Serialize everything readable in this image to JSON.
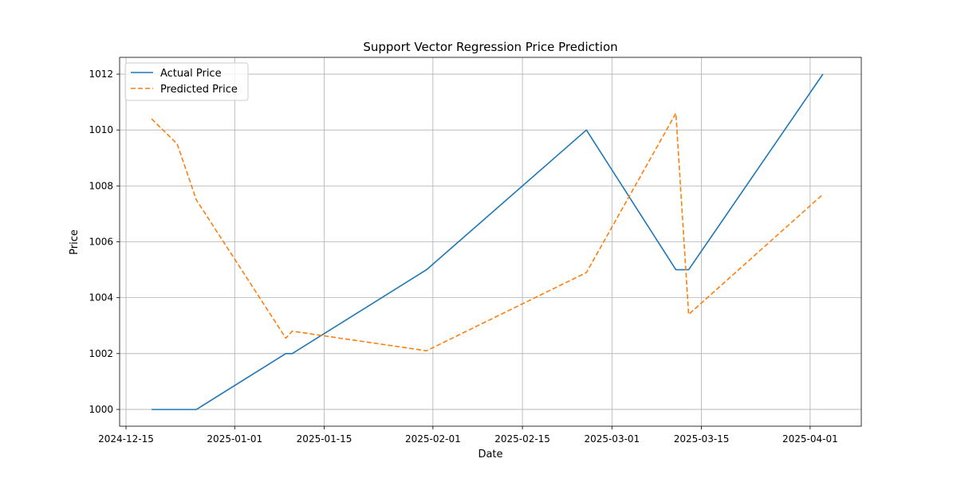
{
  "chart_data": {
    "type": "line",
    "title": "Support Vector Regression Price Prediction",
    "xlabel": "Date",
    "ylabel": "Price",
    "x_tick_labels": [
      "2024-12-15",
      "2025-01-01",
      "2025-01-15",
      "2025-02-01",
      "2025-02-15",
      "2025-03-01",
      "2025-03-15",
      "2025-04-01"
    ],
    "y_tick_labels": [
      "1000",
      "1002",
      "1004",
      "1006",
      "1008",
      "1010",
      "1012"
    ],
    "ylim": [
      999.4,
      1012.6
    ],
    "xlim": [
      "2024-12-14",
      "2025-04-09"
    ],
    "grid": true,
    "legend_position": "top-left",
    "series": [
      {
        "name": "Actual Price",
        "color": "#1f77b4",
        "linestyle": "solid",
        "x": [
          "2024-12-19",
          "2024-12-26",
          "2025-01-09",
          "2025-01-10",
          "2025-01-31",
          "2025-02-25",
          "2025-03-11",
          "2025-03-13",
          "2025-04-03"
        ],
        "y": [
          1000,
          1000,
          1002,
          1002,
          1005,
          1010,
          1005,
          1005,
          1012
        ]
      },
      {
        "name": "Predicted Price",
        "color": "#ff7f0e",
        "linestyle": "dashed",
        "x": [
          "2024-12-19",
          "2024-12-23",
          "2024-12-26",
          "2025-01-09",
          "2025-01-10",
          "2025-01-31",
          "2025-02-25",
          "2025-03-11",
          "2025-03-13",
          "2025-04-03"
        ],
        "y": [
          1010.4,
          1009.5,
          1007.5,
          1002.55,
          1002.8,
          1002.1,
          1004.9,
          1010.6,
          1003.4,
          1007.7
        ]
      }
    ]
  }
}
